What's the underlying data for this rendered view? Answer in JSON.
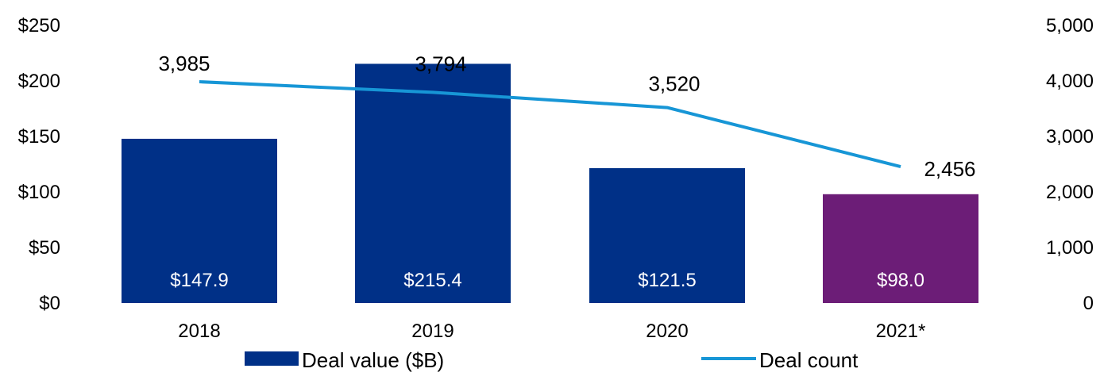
{
  "chart_data": {
    "type": "bar",
    "categories": [
      "2018",
      "2019",
      "2020",
      "2021*"
    ],
    "series": [
      {
        "name": "Deal value ($B)",
        "type": "bar",
        "axis": "left",
        "values": [
          147.9,
          215.4,
          121.5,
          98.0
        ],
        "labels": [
          "$147.9",
          "$215.4",
          "$121.5",
          "$98.0"
        ],
        "colors": [
          "#003087",
          "#003087",
          "#003087",
          "#6c1d77"
        ]
      },
      {
        "name": "Deal count",
        "type": "line",
        "axis": "right",
        "values": [
          3985,
          3794,
          3520,
          2456
        ],
        "labels": [
          "3,985",
          "3,794",
          "3,520",
          "2,456"
        ],
        "color": "#1796d6"
      }
    ],
    "y_left": {
      "ylim": [
        0,
        250
      ],
      "ticks": [
        0,
        50,
        100,
        150,
        200,
        250
      ],
      "tick_labels": [
        "$0",
        "$50",
        "$100",
        "$150",
        "$200",
        "$250"
      ]
    },
    "y_right": {
      "ylim": [
        0,
        5000
      ],
      "ticks": [
        0,
        1000,
        2000,
        3000,
        4000,
        5000
      ],
      "tick_labels": [
        "0",
        "1,000",
        "2,000",
        "3,000",
        "4,000",
        "5,000"
      ]
    },
    "title": "",
    "xlabel": "",
    "ylabel": "",
    "grid": false,
    "legend": {
      "position": "bottom",
      "entries": [
        "Deal value ($B)",
        "Deal count"
      ]
    }
  }
}
